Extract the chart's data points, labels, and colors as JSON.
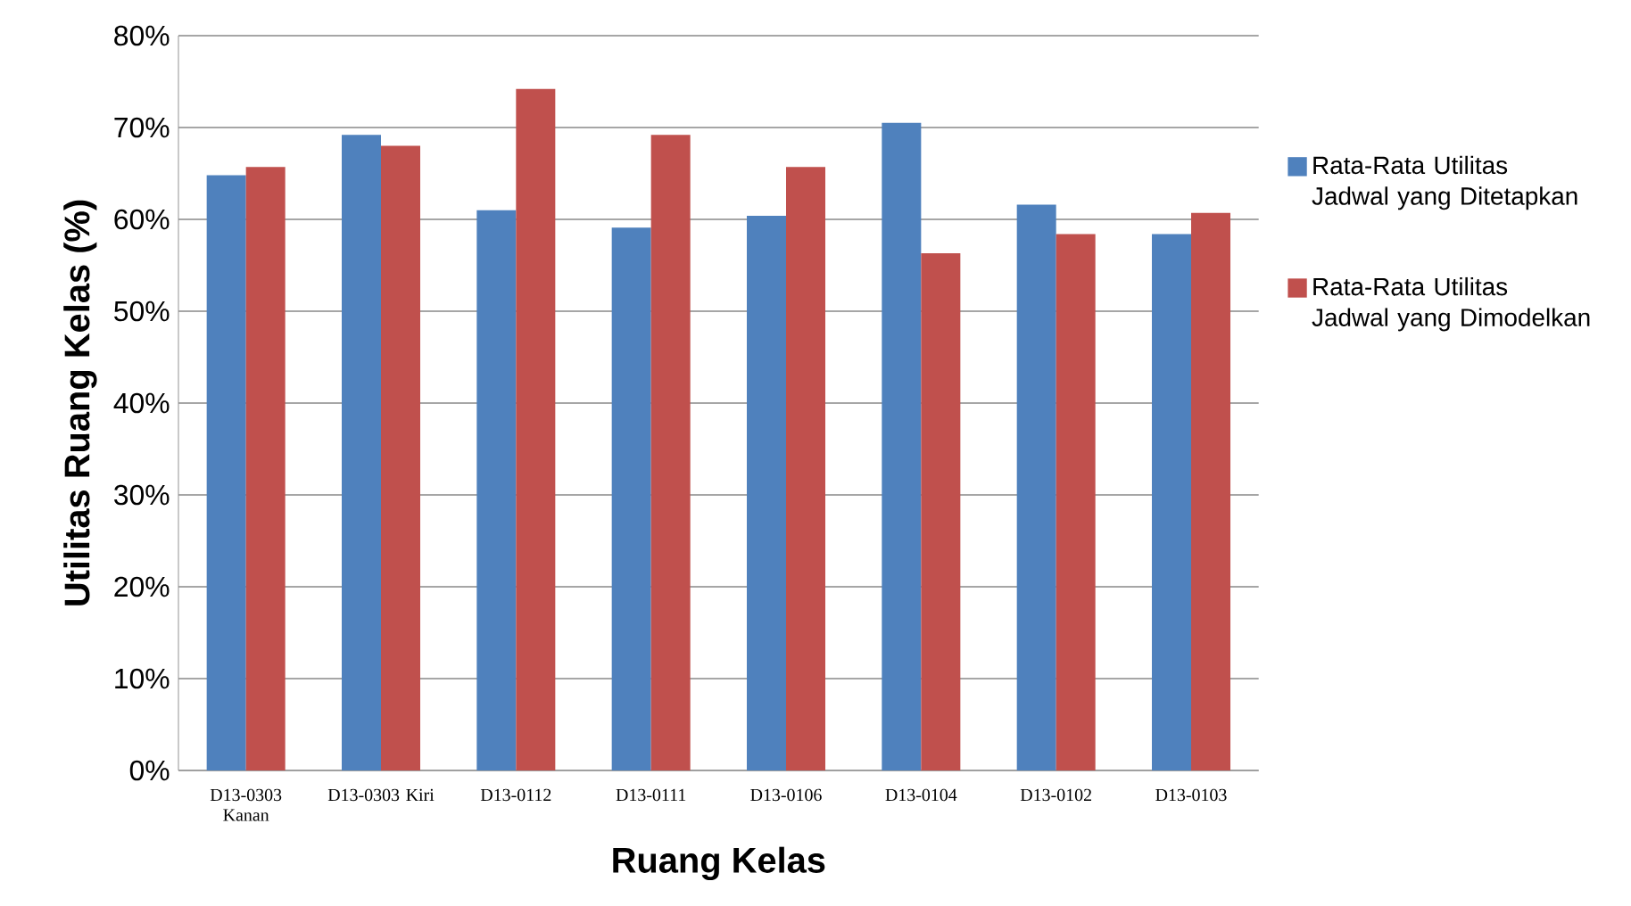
{
  "chart_data": {
    "type": "bar",
    "xlabel": "Ruang Kelas",
    "ylabel": "Utilitas Ruang Kelas (%)",
    "categories": [
      "D13-0303 Kanan",
      "D13-0303 Kiri",
      "D13-0112",
      "D13-0111",
      "D13-0106",
      "D13-0104",
      "D13-0102",
      "D13-0103"
    ],
    "series": [
      {
        "name": "Rata-Rata Utilitas Jadwal yang Ditetapkan",
        "color": "#4f81bd",
        "values": [
          64.8,
          69.2,
          61.0,
          59.1,
          60.4,
          70.5,
          61.6,
          58.4
        ]
      },
      {
        "name": "Rata-Rata Utilitas Jadwal yang Dimodelkan",
        "color": "#c0504d",
        "values": [
          65.7,
          68.0,
          74.2,
          69.2,
          65.7,
          56.3,
          58.4,
          60.7
        ]
      }
    ],
    "ylim": [
      0,
      80
    ],
    "yticks": [
      {
        "value": 0,
        "label": "0%"
      },
      {
        "value": 10,
        "label": "10%"
      },
      {
        "value": 20,
        "label": "20%"
      },
      {
        "value": 30,
        "label": "30%"
      },
      {
        "value": 40,
        "label": "40%"
      },
      {
        "value": 50,
        "label": "50%"
      },
      {
        "value": 60,
        "label": "60%"
      },
      {
        "value": 70,
        "label": "70%"
      },
      {
        "value": 80,
        "label": "80%"
      }
    ],
    "grid": "y",
    "legend": "right"
  }
}
